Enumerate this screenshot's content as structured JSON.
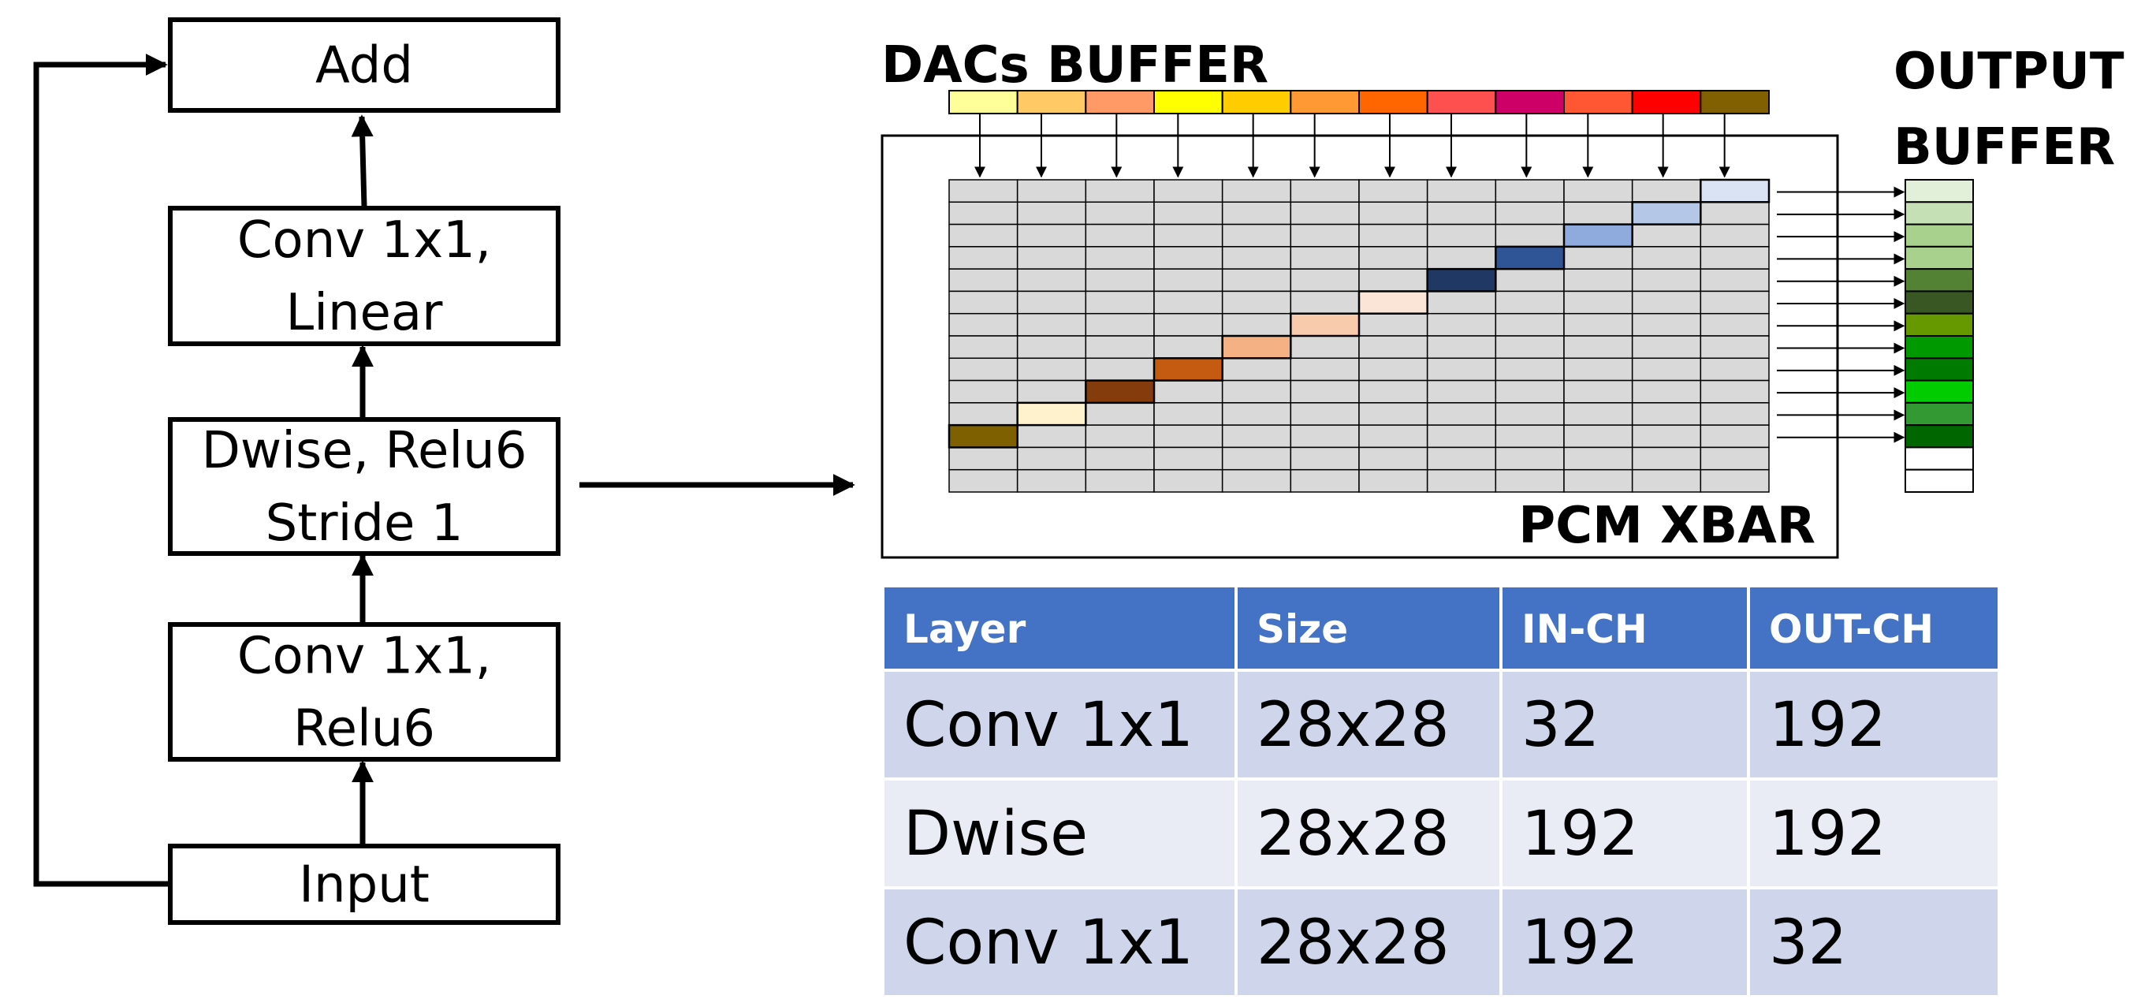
{
  "flow_blocks": [
    {
      "id": "add",
      "lines": [
        "Add"
      ]
    },
    {
      "id": "conv-linear",
      "lines": [
        "Conv 1x1,",
        "Linear"
      ]
    },
    {
      "id": "dwise",
      "lines": [
        "Dwise, Relu6",
        "Stride 1"
      ]
    },
    {
      "id": "conv-relu",
      "lines": [
        "Conv 1x1,",
        "Relu6"
      ]
    },
    {
      "id": "input",
      "lines": [
        "Input"
      ]
    }
  ],
  "labels": {
    "dacs_buffer": "DACs BUFFER",
    "output_buffer_line1": "OUTPUT",
    "output_buffer_line2": "BUFFER",
    "pcm_xbar": "PCM XBAR"
  },
  "dac_colors": [
    "#ffff99",
    "#ffc966",
    "#ff9966",
    "#ffff00",
    "#ffcc00",
    "#ff9933",
    "#ff6600",
    "#ff5050",
    "#cc0066",
    "#ff5733",
    "#ff0000",
    "#806000"
  ],
  "diagonal_colors": [
    "#7f6000",
    "#fff2cc",
    "#843c0c",
    "#c55a11",
    "#f4b183",
    "#f8cbad",
    "#fbe5d6",
    "#1f3864",
    "#2f5597",
    "#8faadc",
    "#b4c7e7",
    "#dae3f3"
  ],
  "output_colors": [
    "#e2f0d9",
    "#c5e0b4",
    "#a9d18e",
    "#a9d18e",
    "#548235",
    "#385723",
    "#669900",
    "#009900",
    "#007a00",
    "#00cc00",
    "#339933",
    "#006600",
    "#ffffff",
    "#ffffff"
  ],
  "table": {
    "headers": [
      "Layer",
      "Size",
      "IN-CH",
      "OUT-CH"
    ],
    "rows": [
      [
        "Conv 1x1",
        "28x28",
        "32",
        "192"
      ],
      [
        "Dwise",
        "28x28",
        "192",
        "192"
      ],
      [
        "Conv 1x1",
        "28x28",
        "192",
        "32"
      ]
    ]
  },
  "colors": {
    "table_header": "#4472c4",
    "table_row_a": "#cfd5ea",
    "table_row_b": "#e9ebf5",
    "xbar_cell": "#d9d9d9"
  }
}
